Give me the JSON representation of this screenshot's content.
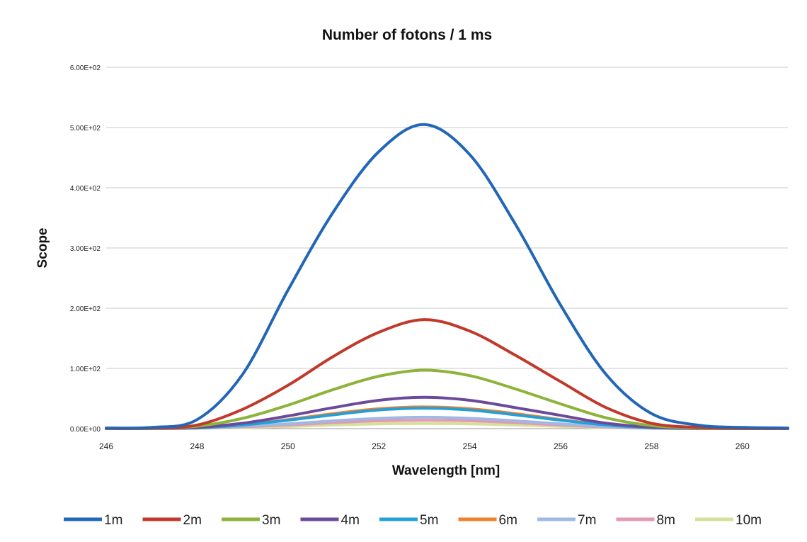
{
  "chart_data": {
    "type": "line",
    "title": "Number of fotons / 1 ms",
    "xlabel": "Wavelength [nm]",
    "ylabel": "Scope",
    "xlim": [
      246,
      261
    ],
    "ylim": [
      0,
      600
    ],
    "x_ticks": [
      246,
      248,
      250,
      252,
      254,
      256,
      258,
      260
    ],
    "x_tick_labels": [
      "246",
      "248",
      "250",
      "252",
      "254",
      "256",
      "258",
      "260"
    ],
    "y_ticks": [
      0,
      100,
      200,
      300,
      400,
      500,
      600
    ],
    "y_tick_labels": [
      "0.00E+00",
      "1.00E+02",
      "2.00E+02",
      "3.00E+02",
      "4.00E+02",
      "5.00E+02",
      "6.00E+02"
    ],
    "grid": "horizontal",
    "legend_position": "bottom",
    "x": [
      246,
      247,
      248,
      249,
      250,
      251,
      252,
      253,
      254,
      255,
      256,
      257,
      258,
      259,
      260,
      261
    ],
    "series": [
      {
        "name": "1m",
        "color": "#2266b8",
        "values": [
          1,
          2,
          15,
          90,
          230,
          360,
          460,
          505,
          455,
          340,
          205,
          90,
          25,
          6,
          2,
          1
        ]
      },
      {
        "name": "2m",
        "color": "#c0392b",
        "values": [
          0.3,
          1,
          6,
          32,
          72,
          120,
          160,
          181,
          162,
          122,
          78,
          35,
          9,
          2,
          0.5,
          0.3
        ]
      },
      {
        "name": "3m",
        "color": "#8db33a",
        "values": [
          0.2,
          0.5,
          4,
          17,
          39,
          65,
          87,
          97,
          88,
          66,
          41,
          18,
          5,
          1,
          0.3,
          0.2
        ]
      },
      {
        "name": "4m",
        "color": "#6b4a9b",
        "values": [
          0.1,
          0.3,
          2,
          9,
          21,
          35,
          47,
          52,
          47,
          35,
          22,
          9,
          2.5,
          0.6,
          0.2,
          0.1
        ]
      },
      {
        "name": "5m",
        "color": "#23a0d8",
        "values": [
          0.1,
          0.2,
          1.5,
          6,
          14,
          23,
          31,
          34,
          31,
          23,
          14,
          6,
          1.6,
          0.4,
          0.1,
          0.1
        ]
      },
      {
        "name": "6m",
        "color": "#f07f2a",
        "values": [
          0.1,
          0.2,
          1.5,
          6,
          15,
          25,
          33,
          36,
          33,
          25,
          15,
          6.5,
          1.8,
          0.4,
          0.1,
          0.1
        ]
      },
      {
        "name": "7m",
        "color": "#9fb8e6",
        "values": [
          0.1,
          0.1,
          1,
          4,
          8,
          13,
          17,
          19,
          17,
          13,
          8,
          3.5,
          1,
          0.3,
          0.1,
          0.1
        ]
      },
      {
        "name": "8m",
        "color": "#e39ab0",
        "values": [
          0.1,
          0.1,
          0.8,
          3,
          6,
          10,
          13,
          14,
          13,
          10,
          6,
          2.6,
          0.8,
          0.2,
          0.1,
          0.1
        ]
      },
      {
        "name": "10m",
        "color": "#d6e09a",
        "values": [
          0.05,
          0.1,
          0.5,
          1.8,
          3.5,
          6,
          8,
          8.5,
          8,
          6,
          3.6,
          1.6,
          0.5,
          0.1,
          0.05,
          0.05
        ]
      }
    ]
  }
}
